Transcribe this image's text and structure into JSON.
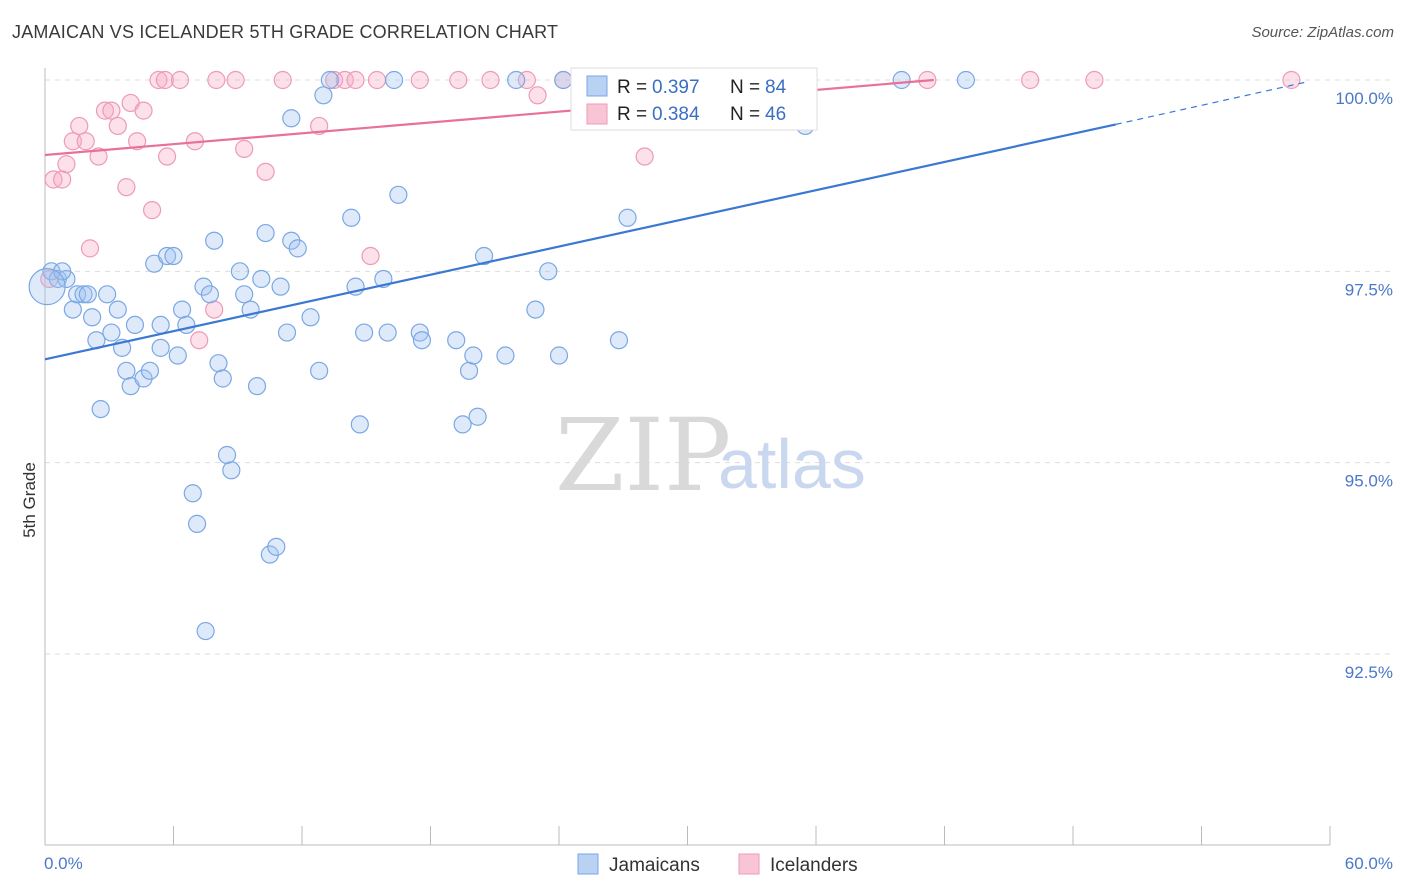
{
  "title": "JAMAICAN VS ICELANDER 5TH GRADE CORRELATION CHART",
  "source": "Source: ZipAtlas.com",
  "watermark": {
    "zip": "ZIP",
    "atlas": "atlas"
  },
  "colors": {
    "blue": "#3a78d4",
    "blue_fill": "rgba(160,195,240,0.35)",
    "blue_stroke": "#7aa8e4",
    "pink": "#e8709a",
    "pink_fill": "rgba(245,170,195,0.35)",
    "pink_stroke": "#ee9ab6",
    "grid": "#dddddd",
    "tick_text": "#4a78c8"
  },
  "legend_box": {
    "series": [
      {
        "r_label": "R =",
        "r_value": "0.397",
        "n_label": "N =",
        "n_value": "84"
      },
      {
        "r_label": "R =",
        "r_value": "0.384",
        "n_label": "N =",
        "n_value": "46"
      }
    ]
  },
  "chart_data": {
    "type": "scatter",
    "title": "JAMAICAN VS ICELANDER 5TH GRADE CORRELATION CHART",
    "xlabel": "",
    "ylabel": "5th Grade",
    "xlim": [
      0,
      60
    ],
    "ylim": [
      90.0,
      100.5
    ],
    "x_tick_labels": [
      "0.0%",
      "60.0%"
    ],
    "y_ticks": [
      92.5,
      95.0,
      97.5,
      100.0
    ],
    "y_tick_labels": [
      "92.5%",
      "95.0%",
      "97.5%",
      "100.0%"
    ],
    "grid": true,
    "legend_position": "bottom-center",
    "series": [
      {
        "name": "Jamaicans",
        "r": 0.397,
        "n": 84,
        "trend": {
          "x0": 0,
          "y0": 96.35,
          "x1": 50,
          "y1": 99.42,
          "x_end": 59,
          "y_end": 99.98
        },
        "points": [
          [
            0.3,
            97.5
          ],
          [
            0.6,
            97.4
          ],
          [
            1.0,
            97.4
          ],
          [
            0.8,
            97.5
          ],
          [
            1.3,
            97.0
          ],
          [
            1.5,
            97.2
          ],
          [
            1.8,
            97.2
          ],
          [
            2.0,
            97.2
          ],
          [
            2.2,
            96.9
          ],
          [
            2.4,
            96.6
          ],
          [
            2.6,
            95.7
          ],
          [
            2.9,
            97.2
          ],
          [
            3.1,
            96.7
          ],
          [
            3.4,
            97.0
          ],
          [
            3.6,
            96.5
          ],
          [
            3.8,
            96.2
          ],
          [
            4.0,
            96.0
          ],
          [
            4.2,
            96.8
          ],
          [
            4.6,
            96.1
          ],
          [
            4.9,
            96.2
          ],
          [
            5.1,
            97.6
          ],
          [
            5.4,
            96.8
          ],
          [
            5.4,
            96.5
          ],
          [
            5.7,
            97.7
          ],
          [
            6.0,
            97.7
          ],
          [
            6.2,
            96.4
          ],
          [
            6.4,
            97.0
          ],
          [
            6.6,
            96.8
          ],
          [
            6.9,
            94.6
          ],
          [
            7.1,
            94.2
          ],
          [
            7.4,
            97.3
          ],
          [
            7.5,
            92.8
          ],
          [
            7.7,
            97.2
          ],
          [
            7.9,
            97.9
          ],
          [
            8.1,
            96.3
          ],
          [
            8.3,
            96.1
          ],
          [
            8.5,
            95.1
          ],
          [
            8.7,
            94.9
          ],
          [
            9.1,
            97.5
          ],
          [
            9.3,
            97.2
          ],
          [
            9.6,
            97.0
          ],
          [
            9.9,
            96.0
          ],
          [
            10.1,
            97.4
          ],
          [
            10.3,
            98.0
          ],
          [
            10.5,
            93.8
          ],
          [
            10.8,
            93.9
          ],
          [
            11.0,
            97.3
          ],
          [
            11.3,
            96.7
          ],
          [
            11.5,
            97.9
          ],
          [
            11.8,
            97.8
          ],
          [
            11.5,
            99.5
          ],
          [
            12.4,
            96.9
          ],
          [
            12.8,
            96.2
          ],
          [
            13.0,
            99.8
          ],
          [
            13.3,
            100.0
          ],
          [
            14.3,
            98.2
          ],
          [
            14.5,
            97.3
          ],
          [
            14.7,
            95.5
          ],
          [
            14.9,
            96.7
          ],
          [
            15.8,
            97.4
          ],
          [
            16.0,
            96.7
          ],
          [
            16.3,
            100.0
          ],
          [
            16.5,
            98.5
          ],
          [
            17.5,
            96.7
          ],
          [
            17.6,
            96.6
          ],
          [
            19.2,
            96.6
          ],
          [
            19.5,
            95.5
          ],
          [
            19.8,
            96.2
          ],
          [
            20.0,
            96.4
          ],
          [
            20.2,
            95.6
          ],
          [
            20.5,
            97.7
          ],
          [
            21.5,
            96.4
          ],
          [
            22.0,
            100.0
          ],
          [
            22.9,
            97.0
          ],
          [
            23.5,
            97.5
          ],
          [
            24.0,
            96.4
          ],
          [
            26.8,
            96.6
          ],
          [
            27.2,
            98.2
          ],
          [
            28.3,
            100.0
          ],
          [
            35.5,
            99.4
          ],
          [
            40.0,
            100.0
          ],
          [
            43.0,
            100.0
          ],
          [
            0.1,
            97.3
          ],
          [
            24.2,
            100.0
          ]
        ]
      },
      {
        "name": "Icelanders",
        "r": 0.384,
        "n": 46,
        "trend": {
          "x0": 0,
          "y0": 99.02,
          "x1": 41.5,
          "y1": 100.0
        },
        "points": [
          [
            0.2,
            97.4
          ],
          [
            0.4,
            98.7
          ],
          [
            0.8,
            98.7
          ],
          [
            1.0,
            98.9
          ],
          [
            1.3,
            99.2
          ],
          [
            1.6,
            99.4
          ],
          [
            1.9,
            99.2
          ],
          [
            2.1,
            97.8
          ],
          [
            2.5,
            99.0
          ],
          [
            2.8,
            99.6
          ],
          [
            3.1,
            99.6
          ],
          [
            3.4,
            99.4
          ],
          [
            3.8,
            98.6
          ],
          [
            4.0,
            99.7
          ],
          [
            4.3,
            99.2
          ],
          [
            4.6,
            99.6
          ],
          [
            5.0,
            98.3
          ],
          [
            5.3,
            100.0
          ],
          [
            5.6,
            100.0
          ],
          [
            5.7,
            99.0
          ],
          [
            6.3,
            100.0
          ],
          [
            7.0,
            99.2
          ],
          [
            7.2,
            96.6
          ],
          [
            7.9,
            97.0
          ],
          [
            8.0,
            100.0
          ],
          [
            8.9,
            100.0
          ],
          [
            9.3,
            99.1
          ],
          [
            10.3,
            98.8
          ],
          [
            11.1,
            100.0
          ],
          [
            12.8,
            99.4
          ],
          [
            13.5,
            100.0
          ],
          [
            14.0,
            100.0
          ],
          [
            14.5,
            100.0
          ],
          [
            15.2,
            97.7
          ],
          [
            15.5,
            100.0
          ],
          [
            17.5,
            100.0
          ],
          [
            19.3,
            100.0
          ],
          [
            20.8,
            100.0
          ],
          [
            22.5,
            100.0
          ],
          [
            23.0,
            99.8
          ],
          [
            24.2,
            100.0
          ],
          [
            28.0,
            99.0
          ],
          [
            41.2,
            100.0
          ],
          [
            46.0,
            100.0
          ],
          [
            49.0,
            100.0
          ],
          [
            58.2,
            100.0
          ]
        ]
      }
    ]
  },
  "bottom_legend": [
    {
      "label": "Jamaicans"
    },
    {
      "label": "Icelanders"
    }
  ]
}
